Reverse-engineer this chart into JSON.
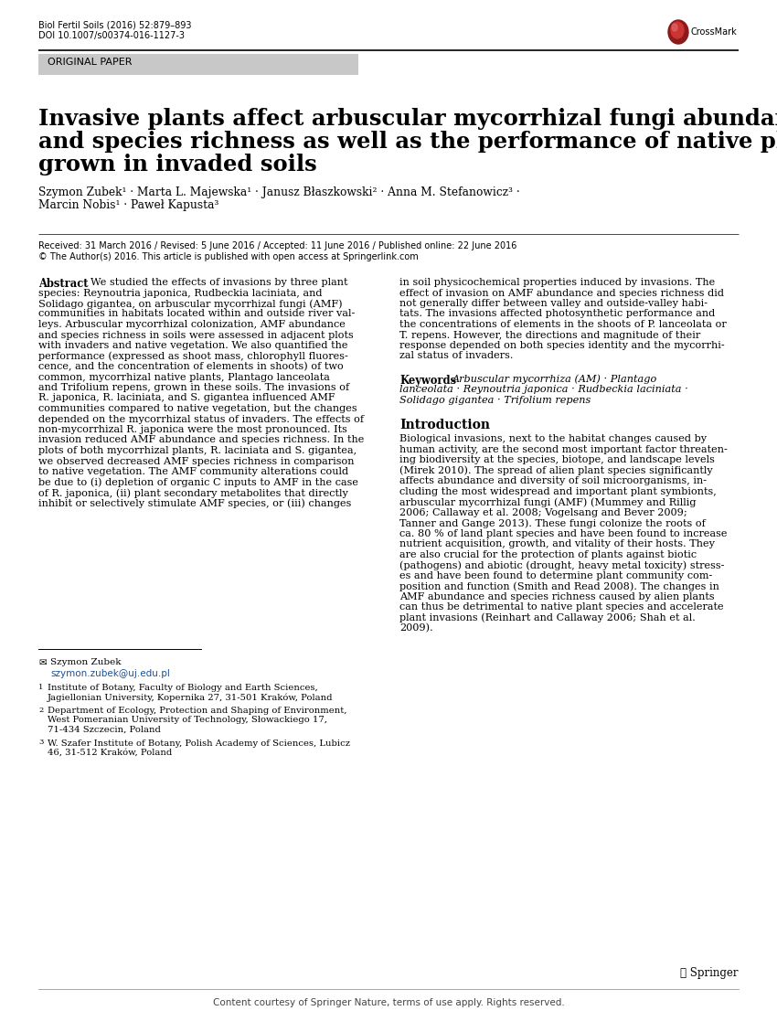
{
  "journal_line1": "Biol Fertil Soils (2016) 52:879–893",
  "journal_line2": "DOI 10.1007/s00374-016-1127-3",
  "section_label": "ORIGINAL PAPER",
  "title_line1": "Invasive plants affect arbuscular mycorrhizal fungi abundance",
  "title_line2": "and species richness as well as the performance of native plants",
  "title_line3": "grown in invaded soils",
  "authors_line1": "Szymon Zubek¹ · Marta L. Majewska¹ · Janusz Błaszkowski² · Anna M. Stefanowicz³ ·",
  "authors_line2": "Marcin Nobis¹ · Paweł Kapusta³",
  "received_line": "Received: 31 March 2016 / Revised: 5 June 2016 / Accepted: 11 June 2016 / Published online: 22 June 2016",
  "copyright_line": "© The Author(s) 2016. This article is published with open access at Springerlink.com",
  "abstract_left_lines": [
    "We studied the effects of invasions by three plant",
    "species: Reynoutria japonica, Rudbeckia laciniata, and",
    "Solidago gigantea, on arbuscular mycorrhizal fungi (AMF)",
    "communities in habitats located within and outside river val-",
    "leys. Arbuscular mycorrhizal colonization, AMF abundance",
    "and species richness in soils were assessed in adjacent plots",
    "with invaders and native vegetation. We also quantified the",
    "performance (expressed as shoot mass, chlorophyll fluores-",
    "cence, and the concentration of elements in shoots) of two",
    "common, mycorrhizal native plants, Plantago lanceolata",
    "and Trifolium repens, grown in these soils. The invasions of",
    "R. japonica, R. laciniata, and S. gigantea influenced AMF",
    "communities compared to native vegetation, but the changes",
    "depended on the mycorrhizal status of invaders. The effects of",
    "non-mycorrhizal R. japonica were the most pronounced. Its",
    "invasion reduced AMF abundance and species richness. In the",
    "plots of both mycorrhizal plants, R. laciniata and S. gigantea,",
    "we observed decreased AMF species richness in comparison",
    "to native vegetation. The AMF community alterations could",
    "be due to (i) depletion of organic C inputs to AMF in the case",
    "of R. japonica, (ii) plant secondary metabolites that directly",
    "inhibit or selectively stimulate AMF species, or (iii) changes"
  ],
  "abstract_right_lines": [
    "in soil physicochemical properties induced by invasions. The",
    "effect of invasion on AMF abundance and species richness did",
    "not generally differ between valley and outside-valley habi-",
    "tats. The invasions affected photosynthetic performance and",
    "the concentrations of elements in the shoots of P. lanceolata or",
    "T. repens. However, the directions and magnitude of their",
    "response depended on both species identity and the mycorrhi-",
    "zal status of invaders."
  ],
  "keywords_line1": "Arbuscular mycorrhiza (AM) · Plantago",
  "keywords_line2": "lanceolata · Reynoutria japonica · Rudbeckia laciniata ·",
  "keywords_line3": "Solidago gigantea · Trifolium repens",
  "intro_title": "Introduction",
  "intro_lines": [
    "Biological invasions, next to the habitat changes caused by",
    "human activity, are the second most important factor threaten-",
    "ing biodiversity at the species, biotope, and landscape levels",
    "(Mirek 2010). The spread of alien plant species significantly",
    "affects abundance and diversity of soil microorganisms, in-",
    "cluding the most widespread and important plant symbionts,",
    "arbuscular mycorrhizal fungi (AMF) (Mummey and Rillig",
    "2006; Callaway et al. 2008; Vogelsang and Bever 2009;",
    "Tanner and Gange 2013). These fungi colonize the roots of",
    "ca. 80 % of land plant species and have been found to increase",
    "nutrient acquisition, growth, and vitality of their hosts. They",
    "are also crucial for the protection of plants against biotic",
    "(pathogens) and abiotic (drought, heavy metal toxicity) stress-",
    "es and have been found to determine plant community com-",
    "position and function (Smith and Read 2008). The changes in",
    "AMF abundance and species richness caused by alien plants",
    "can thus be detrimental to native plant species and accelerate",
    "plant invasions (Reinhart and Callaway 2006; Shah et al.",
    "2009)."
  ],
  "footnote_name": "Szymon Zubek",
  "footnote_email": "szymon.zubek@uj.edu.pl",
  "footnote1_lines": [
    "Institute of Botany, Faculty of Biology and Earth Sciences,",
    "Jagiellonian University, Kopernika 27, 31-501 Kraków, Poland"
  ],
  "footnote2_lines": [
    "Department of Ecology, Protection and Shaping of Environment,",
    "West Pomeranian University of Technology, Słowackiego 17,",
    "71-434 Szczecin, Poland"
  ],
  "footnote3_lines": [
    "W. Szafer Institute of Botany, Polish Academy of Sciences, Lubicz",
    "46, 31-512 Kraków, Poland"
  ],
  "footer_text": "Content courtesy of Springer Nature, terms of use apply. Rights reserved.",
  "springer_text": "⚘ Springer",
  "background_color": "#ffffff",
  "text_color": "#000000",
  "section_bg": "#c8c8c8",
  "link_color": "#1a5296"
}
